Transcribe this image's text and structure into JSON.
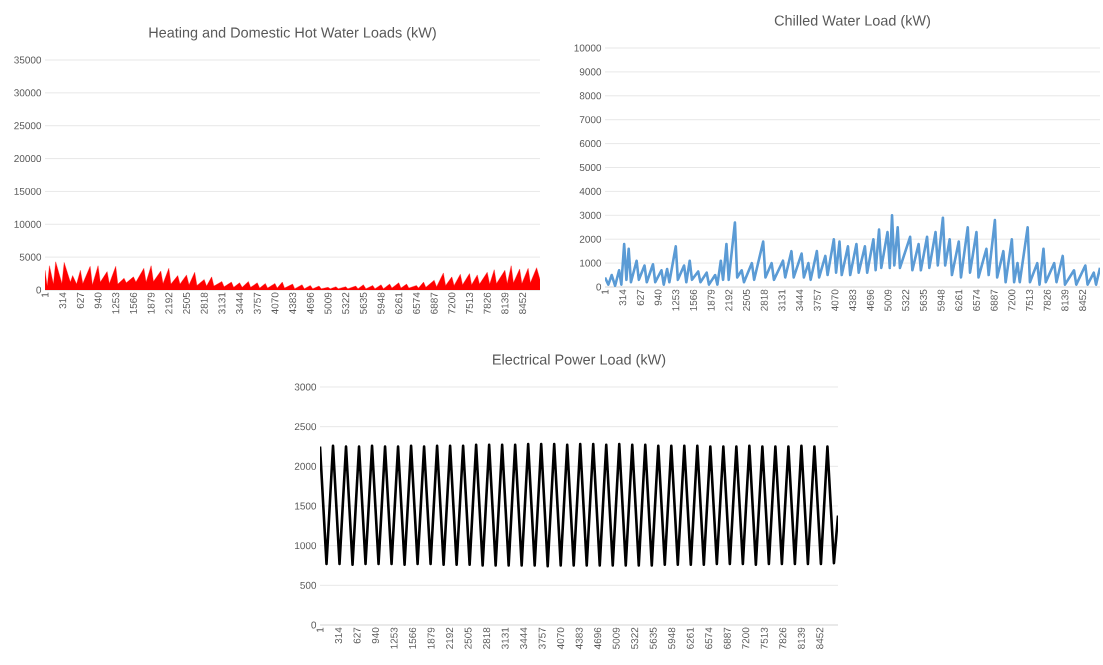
{
  "chart_data": [
    {
      "type": "area",
      "title": "Heating and Domestic Hot Water Loads (kW)",
      "xlim": [
        1,
        8760
      ],
      "xticks": [
        1,
        314,
        627,
        940,
        1253,
        1566,
        1879,
        2192,
        2505,
        2818,
        3131,
        3444,
        3757,
        4070,
        4383,
        4696,
        5009,
        5322,
        5635,
        5948,
        6261,
        6574,
        6887,
        7200,
        7513,
        7826,
        8139,
        8452
      ],
      "ylim": [
        0,
        35000
      ],
      "yticks": [
        0,
        5000,
        10000,
        15000,
        20000,
        25000,
        30000,
        35000
      ],
      "grid": "y",
      "series": [
        {
          "color": "#ff0000",
          "x": [
            1,
            40,
            80,
            150,
            190,
            300,
            340,
            450,
            490,
            560,
            627,
            670,
            800,
            840,
            940,
            980,
            1100,
            1140,
            1253,
            1290,
            1400,
            1440,
            1566,
            1610,
            1750,
            1790,
            1879,
            1920,
            2050,
            2090,
            2192,
            2230,
            2350,
            2390,
            2505,
            2550,
            2650,
            2690,
            2818,
            2860,
            2950,
            2990,
            3131,
            3170,
            3300,
            3340,
            3444,
            3490,
            3600,
            3640,
            3757,
            3800,
            3900,
            3940,
            4070,
            4110,
            4200,
            4240,
            4383,
            4420,
            4550,
            4590,
            4696,
            4740,
            4850,
            4890,
            5009,
            5050,
            5150,
            5190,
            5322,
            5360,
            5500,
            5540,
            5635,
            5680,
            5800,
            5840,
            5948,
            5990,
            6100,
            6140,
            6261,
            6300,
            6400,
            6440,
            6574,
            6610,
            6700,
            6740,
            6887,
            6930,
            7050,
            7090,
            7200,
            7240,
            7350,
            7390,
            7513,
            7550,
            7650,
            7690,
            7826,
            7870,
            7950,
            7990,
            8139,
            8180,
            8250,
            8290,
            8400,
            8440,
            8550,
            8590,
            8700,
            8760
          ],
          "values": [
            3000,
            600,
            3700,
            900,
            4300,
            1000,
            4200,
            1200,
            2200,
            900,
            3000,
            1000,
            3600,
            800,
            3700,
            1200,
            2800,
            1000,
            3600,
            900,
            1800,
            1100,
            2000,
            1200,
            3300,
            1200,
            3700,
            1300,
            2900,
            1000,
            3300,
            900,
            2200,
            900,
            2300,
            800,
            2700,
            700,
            1600,
            600,
            2000,
            600,
            1300,
            500,
            1200,
            400,
            1100,
            400,
            1300,
            400,
            1100,
            300,
            1000,
            300,
            1000,
            300,
            1200,
            300,
            900,
            200,
            800,
            200,
            700,
            200,
            600,
            200,
            400,
            200,
            500,
            200,
            500,
            200,
            600,
            200,
            800,
            200,
            700,
            200,
            800,
            200,
            900,
            300,
            1100,
            300,
            900,
            300,
            700,
            300,
            1200,
            400,
            1500,
            500,
            2600,
            700,
            2000,
            700,
            2400,
            800,
            2500,
            800,
            2300,
            900,
            2700,
            900,
            3100,
            1000,
            3000,
            1000,
            3700,
            1100,
            3200,
            1000,
            3300,
            1100,
            3400,
            1600
          ]
        }
      ]
    },
    {
      "type": "line",
      "title": "Chilled Water Load (kW)",
      "xlim": [
        1,
        8760
      ],
      "xticks": [
        1,
        314,
        627,
        940,
        1253,
        1566,
        1879,
        2192,
        2505,
        2818,
        3131,
        3444,
        3757,
        4070,
        4383,
        4696,
        5009,
        5322,
        5635,
        5948,
        6261,
        6574,
        6887,
        7200,
        7513,
        7826,
        8139,
        8452
      ],
      "ylim": [
        0,
        10000
      ],
      "yticks": [
        0,
        1000,
        2000,
        3000,
        4000,
        5000,
        6000,
        7000,
        8000,
        9000,
        10000
      ],
      "grid": "y",
      "series": [
        {
          "color": "#5b9bd5",
          "x": [
            1,
            60,
            120,
            180,
            250,
            290,
            340,
            380,
            420,
            460,
            560,
            600,
            700,
            740,
            850,
            890,
            1000,
            1040,
            1100,
            1140,
            1253,
            1290,
            1400,
            1440,
            1500,
            1540,
            1650,
            1690,
            1800,
            1840,
            1950,
            1990,
            2050,
            2090,
            2150,
            2190,
            2300,
            2340,
            2420,
            2460,
            2600,
            2640,
            2800,
            2840,
            2950,
            2990,
            3150,
            3190,
            3300,
            3340,
            3480,
            3520,
            3600,
            3640,
            3750,
            3790,
            3900,
            3940,
            4050,
            4090,
            4150,
            4190,
            4300,
            4340,
            4450,
            4490,
            4600,
            4640,
            4750,
            4790,
            4850,
            4890,
            5000,
            5040,
            5080,
            5120,
            5180,
            5220,
            5400,
            5440,
            5550,
            5590,
            5700,
            5740,
            5850,
            5890,
            5980,
            6020,
            6100,
            6140,
            6261,
            6300,
            6420,
            6460,
            6574,
            6610,
            6750,
            6790,
            6900,
            6940,
            7050,
            7090,
            7200,
            7240,
            7300,
            7340,
            7480,
            7520,
            7650,
            7690,
            7760,
            7800,
            7950,
            7990,
            8100,
            8140,
            8300,
            8340,
            8500,
            8540,
            8650,
            8690,
            8760
          ],
          "values": [
            400,
            100,
            500,
            50,
            700,
            100,
            1800,
            300,
            1600,
            200,
            1100,
            300,
            900,
            200,
            950,
            200,
            700,
            100,
            750,
            200,
            1700,
            300,
            900,
            200,
            1100,
            300,
            650,
            200,
            600,
            100,
            500,
            100,
            1100,
            300,
            1800,
            300,
            2700,
            400,
            700,
            200,
            1000,
            300,
            1900,
            400,
            1000,
            300,
            1100,
            400,
            1500,
            400,
            1400,
            400,
            1000,
            300,
            1500,
            400,
            1300,
            500,
            2000,
            600,
            1900,
            500,
            1700,
            500,
            1800,
            600,
            1700,
            600,
            2000,
            700,
            2400,
            800,
            2300,
            800,
            3000,
            900,
            2500,
            800,
            2100,
            700,
            1800,
            700,
            2100,
            800,
            2300,
            900,
            2900,
            900,
            2000,
            500,
            1900,
            400,
            2500,
            600,
            2300,
            400,
            1600,
            500,
            2800,
            400,
            1500,
            200,
            2000,
            200,
            1000,
            200,
            2500,
            200,
            1000,
            100,
            1600,
            200,
            1000,
            200,
            1300,
            100,
            700,
            100,
            900,
            100,
            600,
            100,
            800
          ]
        }
      ]
    },
    {
      "type": "line",
      "title": "Electrical Power Load (kW)",
      "xlim": [
        1,
        8760
      ],
      "xticks": [
        1,
        314,
        627,
        940,
        1253,
        1566,
        1879,
        2192,
        2505,
        2818,
        3131,
        3444,
        3757,
        4070,
        4383,
        4696,
        5009,
        5322,
        5635,
        5948,
        6261,
        6574,
        6887,
        7200,
        7513,
        7826,
        8139,
        8452
      ],
      "ylim": [
        0,
        3000
      ],
      "yticks": [
        0,
        500,
        1000,
        1500,
        2000,
        2500,
        3000
      ],
      "grid": "y",
      "series": [
        {
          "color": "#000000",
          "x": [
            1,
            111,
            221,
            331,
            441,
            551,
            661,
            771,
            881,
            991,
            1101,
            1211,
            1321,
            1431,
            1541,
            1651,
            1761,
            1871,
            1981,
            2091,
            2201,
            2311,
            2421,
            2531,
            2641,
            2751,
            2861,
            2971,
            3081,
            3191,
            3301,
            3411,
            3521,
            3631,
            3741,
            3851,
            3961,
            4071,
            4181,
            4291,
            4401,
            4511,
            4621,
            4731,
            4841,
            4951,
            5061,
            5171,
            5281,
            5391,
            5501,
            5611,
            5721,
            5831,
            5941,
            6051,
            6161,
            6271,
            6381,
            6491,
            6601,
            6711,
            6821,
            6931,
            7041,
            7151,
            7261,
            7371,
            7481,
            7591,
            7701,
            7811,
            7921,
            8031,
            8141,
            8251,
            8361,
            8471,
            8581,
            8691,
            8760
          ],
          "values": [
            2250,
            770,
            2260,
            770,
            2250,
            760,
            2250,
            770,
            2260,
            770,
            2250,
            770,
            2250,
            760,
            2260,
            770,
            2250,
            770,
            2260,
            760,
            2260,
            760,
            2260,
            760,
            2270,
            750,
            2270,
            750,
            2270,
            750,
            2270,
            750,
            2280,
            750,
            2280,
            740,
            2280,
            750,
            2270,
            750,
            2280,
            750,
            2280,
            750,
            2270,
            750,
            2280,
            750,
            2270,
            750,
            2270,
            750,
            2260,
            760,
            2260,
            760,
            2260,
            760,
            2260,
            760,
            2250,
            770,
            2250,
            770,
            2250,
            770,
            2260,
            760,
            2250,
            770,
            2250,
            770,
            2250,
            770,
            2260,
            770,
            2250,
            770,
            2250,
            780,
            1380
          ]
        }
      ]
    }
  ]
}
